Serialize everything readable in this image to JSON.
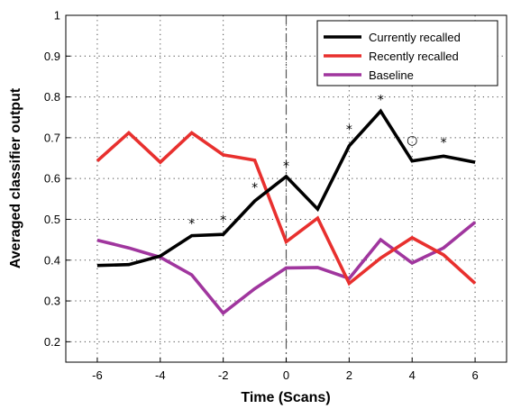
{
  "chart_data": {
    "type": "line",
    "xlabel": "Time (Scans)",
    "ylabel": "Averaged classifier output",
    "xlim": [
      -7,
      7
    ],
    "ylim": [
      0.15,
      1.0
    ],
    "xticks": [
      -6,
      -4,
      -2,
      0,
      2,
      4,
      6
    ],
    "xtick_labels": [
      "-6",
      "-4",
      "-2",
      "0",
      "2",
      "4",
      "6"
    ],
    "yticks": [
      0.2,
      0.3,
      0.4,
      0.5,
      0.6,
      0.7,
      0.8,
      0.9,
      1.0
    ],
    "ytick_labels": [
      "0.2",
      "0.3",
      "0.4",
      "0.5",
      "0.6",
      "0.7",
      "0.8",
      "0.9",
      "1"
    ],
    "grid": true,
    "legend_position": "top-right",
    "vertical_reference_line_x": 0,
    "x": [
      -6,
      -5,
      -4,
      -3,
      -2,
      -1,
      0,
      1,
      2,
      3,
      4,
      5,
      6
    ],
    "series": [
      {
        "name": "Currently recalled",
        "color": "#000000",
        "values": [
          0.387,
          0.389,
          0.41,
          0.46,
          0.463,
          0.545,
          0.605,
          0.525,
          0.68,
          0.765,
          0.643,
          0.655,
          0.64
        ]
      },
      {
        "name": "Recently recalled",
        "color": "#e8302e",
        "values": [
          0.643,
          0.712,
          0.64,
          0.712,
          0.658,
          0.645,
          0.445,
          0.503,
          0.343,
          0.405,
          0.455,
          0.413,
          0.343
        ]
      },
      {
        "name": "Baseline",
        "color": "#a0369e",
        "values": [
          0.449,
          0.43,
          0.407,
          0.364,
          0.27,
          0.33,
          0.381,
          0.382,
          0.355,
          0.45,
          0.393,
          0.43,
          0.493
        ]
      }
    ],
    "annotations": [
      {
        "x": -3,
        "y": 0.497,
        "symbol": "*"
      },
      {
        "x": -2,
        "y": 0.505,
        "symbol": "*"
      },
      {
        "x": -1,
        "y": 0.585,
        "symbol": "*"
      },
      {
        "x": 0,
        "y": 0.638,
        "symbol": "*"
      },
      {
        "x": 2,
        "y": 0.727,
        "symbol": "*"
      },
      {
        "x": 3,
        "y": 0.8,
        "symbol": "*"
      },
      {
        "x": 4,
        "y": 0.693,
        "symbol": "○"
      },
      {
        "x": 5,
        "y": 0.695,
        "symbol": "*"
      }
    ]
  }
}
